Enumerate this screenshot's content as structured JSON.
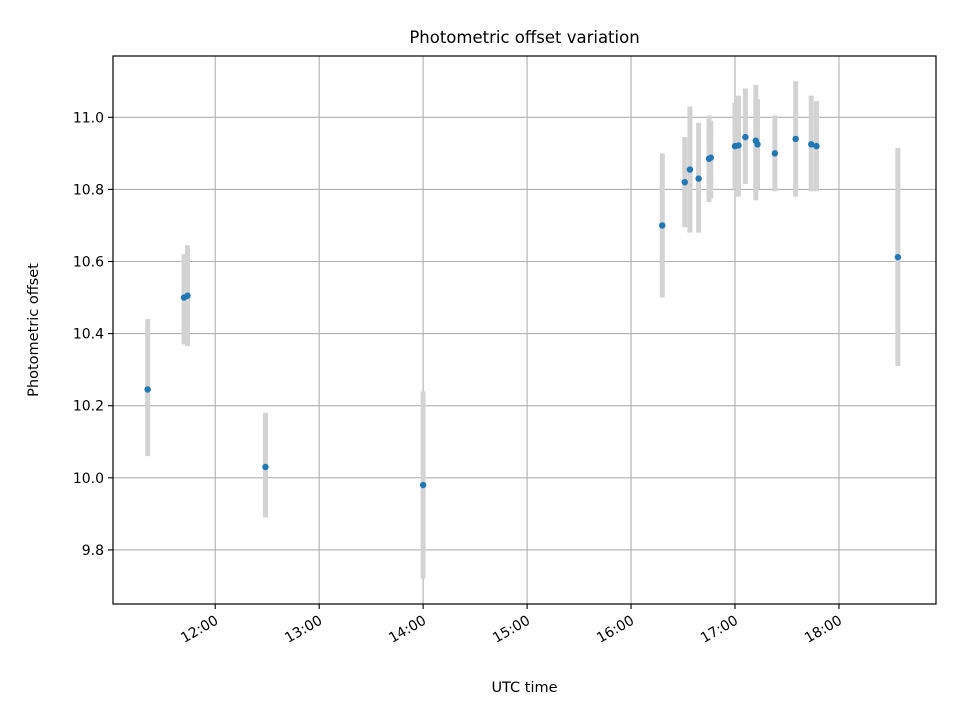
{
  "chart_data": {
    "type": "scatter",
    "title": "Photometric offset variation",
    "xlabel": "UTC time",
    "ylabel": "Photometric offset",
    "x_tick_labels": [
      "12:00",
      "13:00",
      "14:00",
      "15:00",
      "16:00",
      "17:00",
      "18:00"
    ],
    "y_tick_labels": [
      "9.8",
      "10.0",
      "10.2",
      "10.4",
      "10.6",
      "10.8",
      "11.0"
    ],
    "y_ticks": [
      9.8,
      10.0,
      10.2,
      10.4,
      10.6,
      10.8,
      11.0
    ],
    "xlim": [
      "11:01",
      "18:56"
    ],
    "ylim": [
      9.65,
      11.17
    ],
    "grid": true,
    "x_is_time": true,
    "points": [
      {
        "time": "11:21",
        "y": 10.245,
        "err_low": 10.06,
        "err_high": 10.44
      },
      {
        "time": "11:42",
        "y": 10.5,
        "err_low": 10.37,
        "err_high": 10.62
      },
      {
        "time": "11:44",
        "y": 10.505,
        "err_low": 10.365,
        "err_high": 10.645
      },
      {
        "time": "12:29",
        "y": 10.03,
        "err_low": 9.89,
        "err_high": 10.18
      },
      {
        "time": "14:00",
        "y": 9.98,
        "err_low": 9.72,
        "err_high": 10.24
      },
      {
        "time": "16:18",
        "y": 10.7,
        "err_low": 10.5,
        "err_high": 10.9
      },
      {
        "time": "16:31",
        "y": 10.82,
        "err_low": 10.695,
        "err_high": 10.945
      },
      {
        "time": "16:34",
        "y": 10.855,
        "err_low": 10.68,
        "err_high": 11.03
      },
      {
        "time": "16:39",
        "y": 10.83,
        "err_low": 10.68,
        "err_high": 10.985
      },
      {
        "time": "16:45",
        "y": 10.885,
        "err_low": 10.765,
        "err_high": 11.005
      },
      {
        "time": "16:46",
        "y": 10.888,
        "err_low": 10.775,
        "err_high": 10.99
      },
      {
        "time": "17:00",
        "y": 10.92,
        "err_low": 10.8,
        "err_high": 11.04
      },
      {
        "time": "17:02",
        "y": 10.922,
        "err_low": 10.78,
        "err_high": 11.06
      },
      {
        "time": "17:06",
        "y": 10.945,
        "err_low": 10.815,
        "err_high": 11.08
      },
      {
        "time": "17:12",
        "y": 10.935,
        "err_low": 10.77,
        "err_high": 11.09
      },
      {
        "time": "17:13",
        "y": 10.925,
        "err_low": 10.8,
        "err_high": 11.05
      },
      {
        "time": "17:23",
        "y": 10.9,
        "err_low": 10.795,
        "err_high": 11.005
      },
      {
        "time": "17:35",
        "y": 10.94,
        "err_low": 10.78,
        "err_high": 11.1
      },
      {
        "time": "17:44",
        "y": 10.925,
        "err_low": 10.795,
        "err_high": 11.06
      },
      {
        "time": "17:47",
        "y": 10.92,
        "err_low": 10.795,
        "err_high": 11.045
      },
      {
        "time": "18:34",
        "y": 10.612,
        "err_low": 10.31,
        "err_high": 10.915
      }
    ],
    "colors": {
      "marker": "#1f77b4",
      "errorbar": "#d3d3d3",
      "grid": "#b0b0b0",
      "axes": "#000000"
    }
  }
}
